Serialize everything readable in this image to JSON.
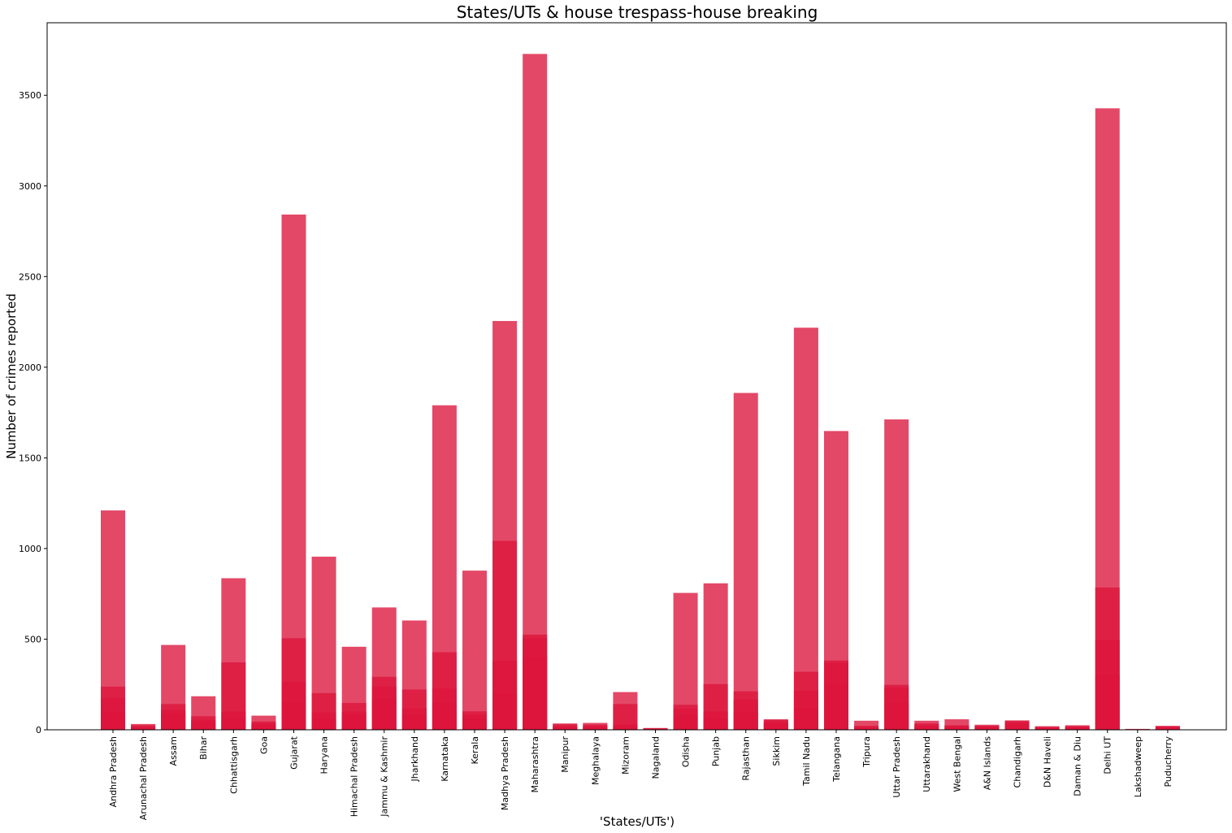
{
  "chart_data": {
    "type": "bar",
    "title": "States/UTs & house trespass-house breaking",
    "xlabel": "'States/UTs')",
    "ylabel": "Number of crimes reported",
    "ylim": [
      0,
      3900
    ],
    "yticks": [
      0,
      500,
      1000,
      1500,
      2000,
      2500,
      3000,
      3500
    ],
    "grid": false,
    "bar_color": "#dc143c",
    "categories": [
      "Andhra Pradesh",
      "Arunachal Pradesh",
      "Assam",
      "Bihar",
      "Chhattisgarh",
      "Goa",
      "Gujarat",
      "Haryana",
      "Himachal Pradesh",
      "Jammu & Kashmir",
      "Jharkhand",
      "Karnataka",
      "Kerala",
      "Madhya Pradesh",
      "Maharashtra",
      "Manipur",
      "Meghalaya",
      "Mizoram",
      "Nagaland",
      "Odisha",
      "Punjab",
      "Rajasthan",
      "Sikkim",
      "Tamil Nadu",
      "Telangana",
      "Tripura",
      "Uttar Pradesh",
      "Uttarakhand",
      "West Bengal",
      "A&N Islands",
      "Chandigarh",
      "D&N Haveli",
      "Daman & Diu",
      "Delhi UT",
      "Lakshadweep",
      "Puducherry"
    ],
    "series": [
      {
        "values": [
          1210,
          32,
          468,
          185,
          836,
          78,
          2842,
          955,
          458,
          675,
          603,
          1790,
          878,
          2255,
          3728,
          35,
          38,
          208,
          10,
          755,
          808,
          1858,
          58,
          2218,
          1648,
          50,
          1712,
          50,
          58,
          28,
          52,
          20,
          25,
          3428,
          5,
          22
        ]
      },
      {
        "values": [
          238,
          25,
          142,
          75,
          372,
          45,
          505,
          202,
          148,
          292,
          222,
          428,
          102,
          1042,
          525,
          30,
          28,
          142,
          8,
          138,
          252,
          212,
          55,
          320,
          382,
          22,
          248,
          35,
          25,
          22,
          48,
          15,
          20,
          785,
          3,
          18
        ]
      },
      {
        "values": [
          175,
          15,
          110,
          55,
          100,
          35,
          265,
          95,
          100,
          238,
          118,
          228,
          85,
          380,
          505,
          20,
          20,
          30,
          5,
          115,
          100,
          168,
          45,
          215,
          370,
          15,
          232,
          25,
          20,
          18,
          40,
          12,
          15,
          495,
          2,
          15
        ]
      },
      {
        "values": [
          100,
          10,
          90,
          40,
          60,
          25,
          150,
          60,
          80,
          170,
          80,
          150,
          60,
          200,
          400,
          15,
          15,
          20,
          4,
          80,
          60,
          100,
          35,
          120,
          250,
          10,
          150,
          15,
          15,
          12,
          30,
          8,
          10,
          300,
          1,
          10
        ]
      }
    ]
  }
}
